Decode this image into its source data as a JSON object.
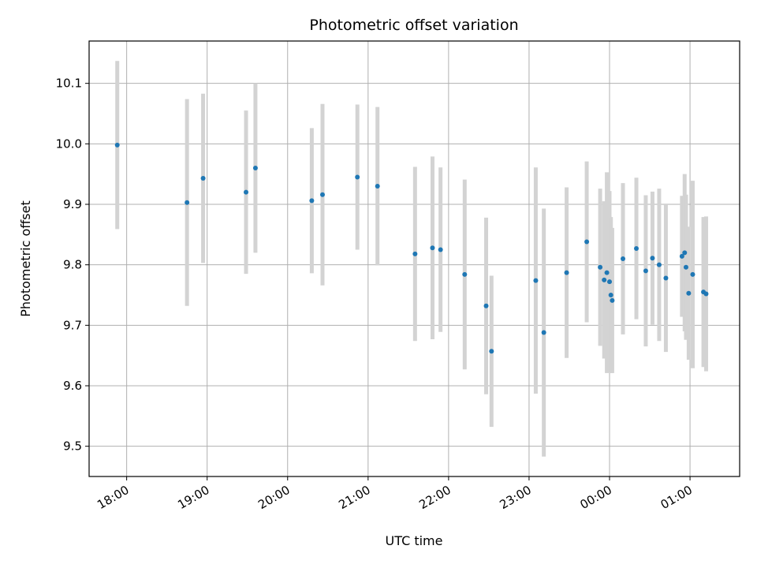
{
  "chart_data": {
    "type": "scatter",
    "title": "Photometric offset variation",
    "xlabel": "UTC time",
    "ylabel": "Photometric offset",
    "x_unit": "hour",
    "xlim": [
      "17:32",
      "01:37"
    ],
    "ylim": [
      9.45,
      10.17
    ],
    "x_ticks": [
      "18:00",
      "19:00",
      "20:00",
      "21:00",
      "22:00",
      "23:00",
      "00:00",
      "01:00"
    ],
    "y_ticks": [
      "9.5",
      "9.6",
      "9.7",
      "9.8",
      "9.9",
      "10.0",
      "10.1"
    ],
    "grid": true,
    "legend": "none",
    "colors": {
      "point": "#1f77b4",
      "errorbar": "#d3d3d3",
      "grid": "#b0b0b0"
    },
    "points": [
      {
        "x": "17:53",
        "y": 9.998,
        "err": 0.139
      },
      {
        "x": "18:45",
        "y": 9.903,
        "err": 0.171
      },
      {
        "x": "18:57",
        "y": 9.943,
        "err": 0.14
      },
      {
        "x": "19:29",
        "y": 9.92,
        "err": 0.135
      },
      {
        "x": "19:36",
        "y": 9.96,
        "err": 0.14
      },
      {
        "x": "20:18",
        "y": 9.906,
        "err": 0.12
      },
      {
        "x": "20:26",
        "y": 9.916,
        "err": 0.15
      },
      {
        "x": "20:52",
        "y": 9.945,
        "err": 0.12
      },
      {
        "x": "21:07",
        "y": 9.93,
        "err": 0.131
      },
      {
        "x": "21:35",
        "y": 9.818,
        "err": 0.144
      },
      {
        "x": "21:48",
        "y": 9.828,
        "err": 0.151
      },
      {
        "x": "21:54",
        "y": 9.825,
        "err": 0.136
      },
      {
        "x": "22:12",
        "y": 9.784,
        "err": 0.157
      },
      {
        "x": "22:28",
        "y": 9.732,
        "err": 0.146
      },
      {
        "x": "22:32",
        "y": 9.657,
        "err": 0.125
      },
      {
        "x": "23:05",
        "y": 9.774,
        "err": 0.187
      },
      {
        "x": "23:11",
        "y": 9.688,
        "err": 0.205
      },
      {
        "x": "23:28",
        "y": 9.787,
        "err": 0.141
      },
      {
        "x": "23:43",
        "y": 9.838,
        "err": 0.133
      },
      {
        "x": "23:53",
        "y": 9.796,
        "err": 0.13
      },
      {
        "x": "23:56",
        "y": 9.775,
        "err": 0.13
      },
      {
        "x": "23:58",
        "y": 9.787,
        "err": 0.166
      },
      {
        "x": "00:00",
        "y": 9.772,
        "err": 0.15
      },
      {
        "x": "00:01",
        "y": 9.75,
        "err": 0.129
      },
      {
        "x": "00:02",
        "y": 9.741,
        "err": 0.12
      },
      {
        "x": "00:10",
        "y": 9.81,
        "err": 0.125
      },
      {
        "x": "00:20",
        "y": 9.827,
        "err": 0.117
      },
      {
        "x": "00:27",
        "y": 9.79,
        "err": 0.125
      },
      {
        "x": "00:32",
        "y": 9.811,
        "err": 0.11
      },
      {
        "x": "00:37",
        "y": 9.8,
        "err": 0.126
      },
      {
        "x": "00:42",
        "y": 9.778,
        "err": 0.122
      },
      {
        "x": "00:54",
        "y": 9.814,
        "err": 0.1
      },
      {
        "x": "00:56",
        "y": 9.82,
        "err": 0.13
      },
      {
        "x": "00:57",
        "y": 9.796,
        "err": 0.12
      },
      {
        "x": "00:59",
        "y": 9.753,
        "err": 0.11
      },
      {
        "x": "01:02",
        "y": 9.784,
        "err": 0.155
      },
      {
        "x": "01:10",
        "y": 9.755,
        "err": 0.124
      },
      {
        "x": "01:12",
        "y": 9.752,
        "err": 0.128
      }
    ]
  }
}
